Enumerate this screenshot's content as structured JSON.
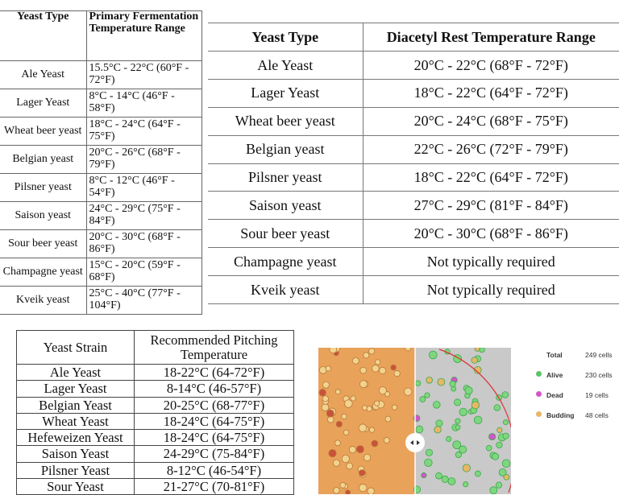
{
  "table1": {
    "headers": [
      "Yeast Type",
      "Primary Fermentation Temperature Range"
    ],
    "rows": [
      [
        "Ale Yeast",
        "15.5°C - 22°C (60°F - 72°F)"
      ],
      [
        "Lager Yeast",
        "8°C - 14°C (46°F - 58°F)"
      ],
      [
        "Wheat beer yeast",
        "18°C - 24°C (64°F - 75°F)"
      ],
      [
        "Belgian yeast",
        "20°C - 26°C (68°F - 79°F)"
      ],
      [
        "Pilsner yeast",
        "8°C - 12°C (46°F - 54°F)"
      ],
      [
        "Saison yeast",
        "24°C - 29°C (75°F - 84°F)"
      ],
      [
        "Sour beer yeast",
        "20°C - 30°C (68°F - 86°F)"
      ],
      [
        "Champagne yeast",
        "15°C - 20°C (59°F - 68°F)"
      ],
      [
        "Kveik yeast",
        "25°C - 40°C (77°F - 104°F)"
      ]
    ]
  },
  "table2": {
    "headers": [
      "Yeast Type",
      "Diacetyl Rest Temperature Range"
    ],
    "rows": [
      [
        "Ale Yeast",
        "20°C - 22°C (68°F - 72°F)"
      ],
      [
        "Lager Yeast",
        "18°C - 22°C (64°F - 72°F)"
      ],
      [
        "Wheat beer yeast",
        "20°C - 24°C (68°F - 75°F)"
      ],
      [
        "Belgian yeast",
        "22°C - 26°C (72°F - 79°F)"
      ],
      [
        "Pilsner yeast",
        "18°C - 22°C (64°F - 72°F)"
      ],
      [
        "Saison yeast",
        "27°C - 29°C (81°F - 84°F)"
      ],
      [
        "Sour beer yeast",
        "20°C - 30°C (68°F - 86°F)"
      ],
      [
        "Champagne yeast",
        "Not typically required"
      ],
      [
        "Kveik yeast",
        "Not typically required"
      ]
    ]
  },
  "table3": {
    "headers": [
      "Yeast Strain",
      "Recommended Pitching Temperature"
    ],
    "rows": [
      [
        "Ale Yeast",
        "18-22°C (64-72°F)"
      ],
      [
        "Lager Yeast",
        "8-14°C (46-57°F)"
      ],
      [
        "Belgian Yeast",
        "20-25°C (68-77°F)"
      ],
      [
        "Wheat Yeast",
        "18-24°C (64-75°F)"
      ],
      [
        "Hefeweizen Yeast",
        "18-24°C (64-75°F)"
      ],
      [
        "Saison Yeast",
        "24-29°C (75-84°F)"
      ],
      [
        "Pilsner Yeast",
        "8-12°C (46-54°F)"
      ],
      [
        "Sour Yeast",
        "21-27°C (70-81°F)"
      ]
    ]
  },
  "cell_count": {
    "legend": [
      {
        "label": "Total",
        "count": "249 cells"
      },
      {
        "label": "Alive",
        "count": "230 cells",
        "color": "#5cc36a"
      },
      {
        "label": "Dead",
        "count": "19 cells",
        "color": "#d455c8"
      },
      {
        "label": "Budding",
        "count": "48 cells",
        "color": "#e8b766"
      }
    ]
  }
}
